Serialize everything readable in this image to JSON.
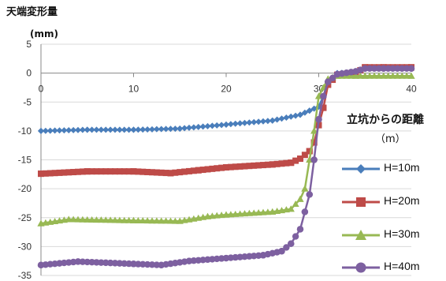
{
  "chart_data": {
    "type": "line",
    "ylabel": "天端変形量",
    "yunit": "(mm)",
    "xlabel": "立坑からの距離",
    "xunit": "（m）",
    "xlim": [
      0,
      40
    ],
    "ylim": [
      -35,
      5
    ],
    "xticks": [
      "0",
      "10",
      "20",
      "30",
      "40"
    ],
    "yticks": [
      "5",
      "0",
      "-5",
      "-10",
      "-15",
      "-20",
      "-25",
      "-30",
      "-35"
    ],
    "grid": "horizontal",
    "legend_position": "right",
    "series": [
      {
        "name": "H=10m",
        "color": "#4a7ebb",
        "marker": "diamond",
        "points": [
          [
            0,
            -10.0
          ],
          [
            5,
            -9.8
          ],
          [
            10,
            -9.8
          ],
          [
            15,
            -9.6
          ],
          [
            20,
            -8.9
          ],
          [
            25,
            -8.2
          ],
          [
            28,
            -7.2
          ],
          [
            29,
            -6.5
          ],
          [
            30,
            -5.8
          ],
          [
            30.5,
            -4
          ],
          [
            31,
            -1.5
          ],
          [
            32,
            0
          ],
          [
            34,
            0.2
          ],
          [
            35,
            1
          ],
          [
            37,
            1
          ],
          [
            40,
            1
          ]
        ]
      },
      {
        "name": "H=20m",
        "color": "#be4b48",
        "marker": "square",
        "points": [
          [
            0,
            -17.4
          ],
          [
            5,
            -17.0
          ],
          [
            10,
            -17.0
          ],
          [
            14,
            -17.3
          ],
          [
            17,
            -16.8
          ],
          [
            20,
            -16.3
          ],
          [
            25,
            -15.8
          ],
          [
            27,
            -15.5
          ],
          [
            28,
            -14.8
          ],
          [
            29,
            -13.5
          ],
          [
            29.5,
            -12
          ],
          [
            30,
            -9
          ],
          [
            30.5,
            -6
          ],
          [
            31,
            -2
          ],
          [
            32,
            -0.3
          ],
          [
            34,
            0
          ],
          [
            35,
            1
          ],
          [
            37,
            1
          ],
          [
            40,
            1
          ]
        ]
      },
      {
        "name": "H=30m",
        "color": "#98b954",
        "marker": "triangle",
        "points": [
          [
            0,
            -26.0
          ],
          [
            3,
            -25.3
          ],
          [
            10,
            -25.5
          ],
          [
            15,
            -25.6
          ],
          [
            18,
            -24.8
          ],
          [
            20,
            -24.5
          ],
          [
            25,
            -24.0
          ],
          [
            27,
            -23.5
          ],
          [
            28,
            -21.8
          ],
          [
            28.5,
            -20
          ],
          [
            29,
            -15
          ],
          [
            29.5,
            -10
          ],
          [
            30,
            -4
          ],
          [
            31,
            -1
          ],
          [
            32,
            -0.5
          ],
          [
            34,
            -0.5
          ],
          [
            35,
            -0.5
          ],
          [
            40,
            -0.5
          ]
        ]
      },
      {
        "name": "H=40m",
        "color": "#7d60a0",
        "marker": "circle",
        "points": [
          [
            0,
            -33.2
          ],
          [
            4,
            -32.6
          ],
          [
            10,
            -33.0
          ],
          [
            13,
            -33.2
          ],
          [
            16,
            -32.5
          ],
          [
            20,
            -32.0
          ],
          [
            24,
            -31.5
          ],
          [
            26,
            -30.8
          ],
          [
            27,
            -29.5
          ],
          [
            28,
            -27.0
          ],
          [
            28.5,
            -24
          ],
          [
            29,
            -21
          ],
          [
            29.5,
            -15
          ],
          [
            30,
            -8
          ],
          [
            30.5,
            -4
          ],
          [
            31,
            -1.5
          ],
          [
            32,
            -0.2
          ],
          [
            34,
            0.3
          ],
          [
            35,
            0.8
          ],
          [
            37,
            0.8
          ],
          [
            40,
            0.8
          ]
        ]
      }
    ]
  }
}
